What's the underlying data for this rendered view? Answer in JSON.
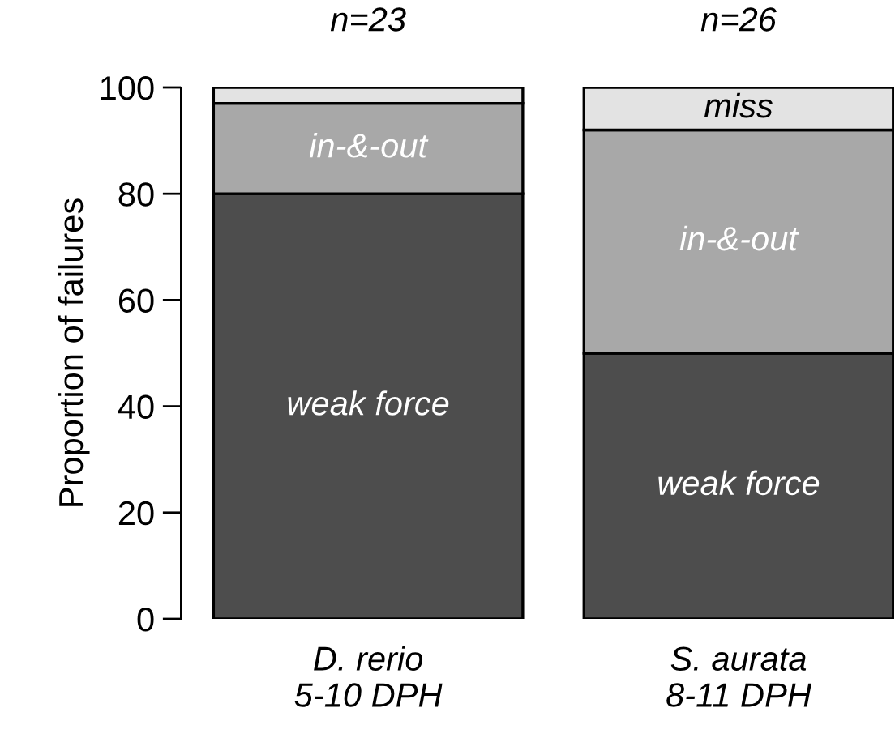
{
  "chart_data": {
    "type": "bar",
    "stacked": true,
    "ylabel": "Proportion of failures",
    "categories": [
      "D. rerio\n5-10 DPH",
      "S. aurata\n8-11 DPH"
    ],
    "series": [
      {
        "name": "weak force",
        "color": "#4d4d4d",
        "values": [
          80,
          50
        ]
      },
      {
        "name": "in-&-out",
        "color": "#a8a8a8",
        "values": [
          17,
          42
        ]
      },
      {
        "name": "miss",
        "color": "#e3e3e3",
        "values": [
          3,
          8
        ]
      }
    ],
    "ylim": [
      0,
      100
    ],
    "yticks": [
      0,
      20,
      40,
      60,
      80,
      100
    ],
    "grid": false,
    "legend": false,
    "annotations": [
      "n=23",
      "n=26"
    ]
  }
}
